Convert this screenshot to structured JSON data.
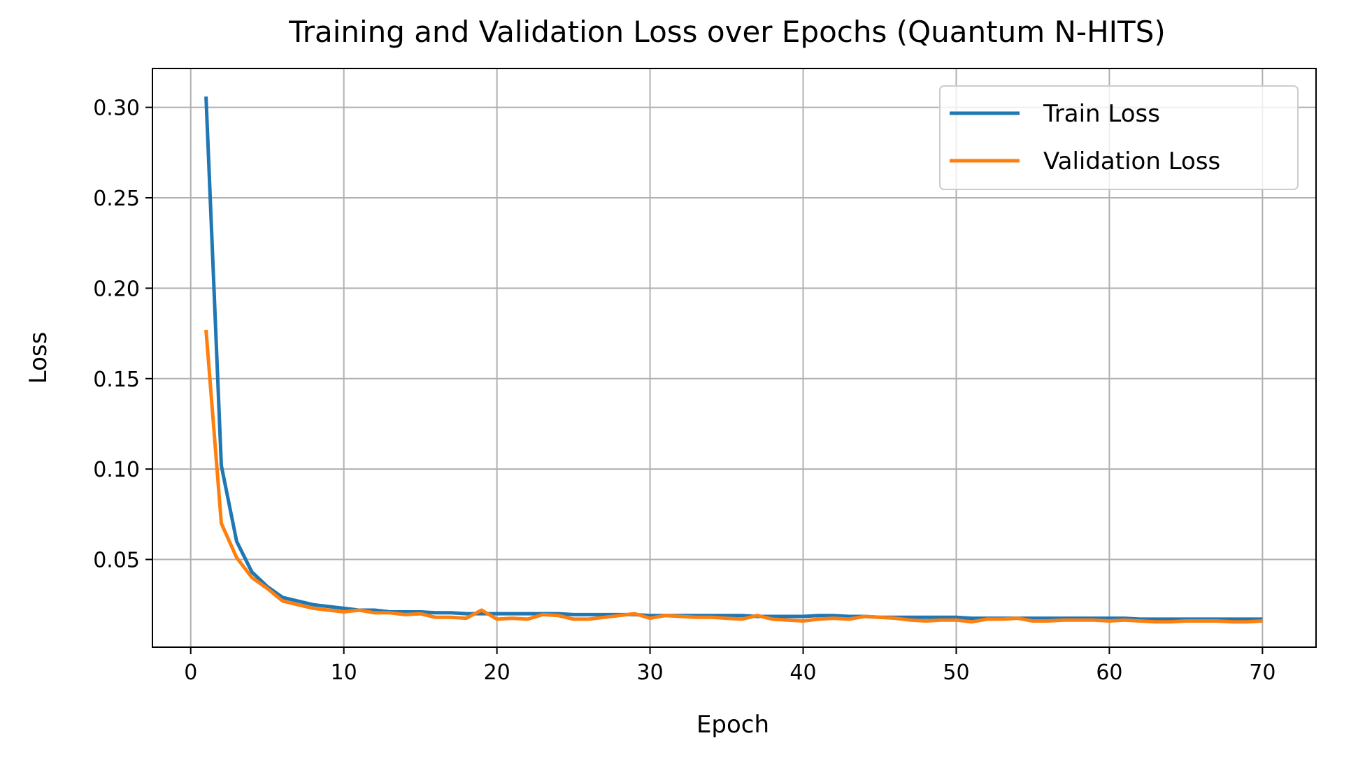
{
  "chart_data": {
    "type": "line",
    "title": "Training and Validation Loss over Epochs (Quantum N-HITS)",
    "xlabel": "Epoch",
    "ylabel": "Loss",
    "xlim": [
      -2.5,
      73.5
    ],
    "ylim": [
      0.0015,
      0.3215
    ],
    "xticks": [
      0,
      10,
      20,
      30,
      40,
      50,
      60,
      70
    ],
    "xtick_labels": [
      "0",
      "10",
      "20",
      "30",
      "40",
      "50",
      "60",
      "70"
    ],
    "yticks": [
      0.05,
      0.1,
      0.15,
      0.2,
      0.25,
      0.3
    ],
    "ytick_labels": [
      "0.05",
      "0.10",
      "0.15",
      "0.20",
      "0.25",
      "0.30"
    ],
    "grid": true,
    "legend_position": "upper right",
    "x": [
      1,
      2,
      3,
      4,
      5,
      6,
      7,
      8,
      9,
      10,
      11,
      12,
      13,
      14,
      15,
      16,
      17,
      18,
      19,
      20,
      21,
      22,
      23,
      24,
      25,
      26,
      27,
      28,
      29,
      30,
      31,
      32,
      33,
      34,
      35,
      36,
      37,
      38,
      39,
      40,
      41,
      42,
      43,
      44,
      45,
      46,
      47,
      48,
      49,
      50,
      51,
      52,
      53,
      54,
      55,
      56,
      57,
      58,
      59,
      60,
      61,
      62,
      63,
      64,
      65,
      66,
      67,
      68,
      69,
      70
    ],
    "series": [
      {
        "name": "Train Loss",
        "color": "#1f77b4",
        "values": [
          0.306,
          0.102,
          0.06,
          0.043,
          0.035,
          0.029,
          0.027,
          0.025,
          0.024,
          0.023,
          0.022,
          0.022,
          0.021,
          0.021,
          0.021,
          0.0205,
          0.0205,
          0.02,
          0.02,
          0.02,
          0.02,
          0.02,
          0.02,
          0.02,
          0.0195,
          0.0195,
          0.0195,
          0.0195,
          0.0195,
          0.019,
          0.019,
          0.019,
          0.019,
          0.019,
          0.019,
          0.019,
          0.0185,
          0.0185,
          0.0185,
          0.0185,
          0.019,
          0.019,
          0.0185,
          0.0185,
          0.018,
          0.018,
          0.018,
          0.018,
          0.018,
          0.018,
          0.0175,
          0.0175,
          0.0175,
          0.0175,
          0.0175,
          0.0175,
          0.0175,
          0.0175,
          0.0175,
          0.0175,
          0.0175,
          0.017,
          0.017,
          0.017,
          0.017,
          0.017,
          0.017,
          0.017,
          0.017,
          0.017
        ]
      },
      {
        "name": "Validation Loss",
        "color": "#ff7f0e",
        "values": [
          0.177,
          0.07,
          0.051,
          0.04,
          0.034,
          0.027,
          0.025,
          0.023,
          0.022,
          0.021,
          0.022,
          0.0205,
          0.0205,
          0.0195,
          0.02,
          0.018,
          0.018,
          0.0175,
          0.022,
          0.017,
          0.0175,
          0.017,
          0.0195,
          0.019,
          0.017,
          0.017,
          0.018,
          0.019,
          0.02,
          0.0175,
          0.019,
          0.0185,
          0.018,
          0.018,
          0.0175,
          0.017,
          0.019,
          0.017,
          0.0165,
          0.016,
          0.017,
          0.0175,
          0.017,
          0.0185,
          0.018,
          0.0175,
          0.0165,
          0.016,
          0.0165,
          0.0165,
          0.0155,
          0.017,
          0.017,
          0.0175,
          0.016,
          0.016,
          0.0165,
          0.0165,
          0.0165,
          0.016,
          0.0165,
          0.016,
          0.0155,
          0.0155,
          0.016,
          0.016,
          0.016,
          0.0155,
          0.0155,
          0.016
        ]
      }
    ]
  }
}
